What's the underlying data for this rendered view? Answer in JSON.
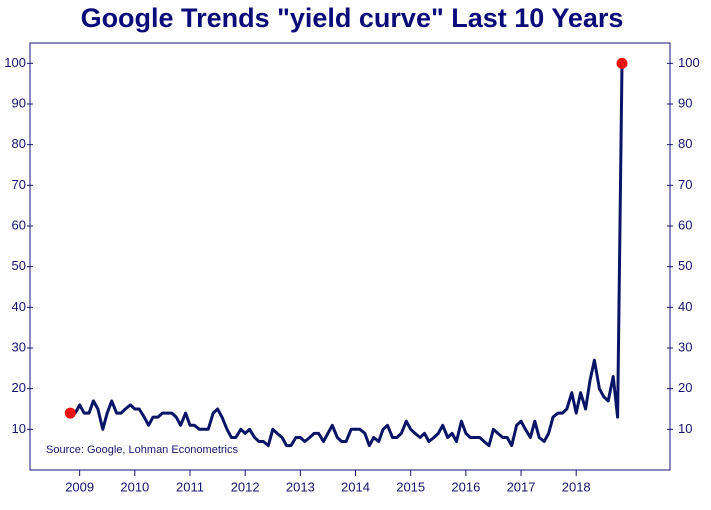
{
  "chart_data": {
    "type": "line",
    "title": "Google Trends \"yield curve\" Last 10 Years",
    "annotation": "Source: Google, Lohman Econometrics",
    "x": [
      2008.83,
      2008.92,
      2009.0,
      2009.08,
      2009.17,
      2009.25,
      2009.33,
      2009.42,
      2009.5,
      2009.58,
      2009.67,
      2009.75,
      2009.83,
      2009.92,
      2010.0,
      2010.08,
      2010.17,
      2010.25,
      2010.33,
      2010.42,
      2010.5,
      2010.58,
      2010.67,
      2010.75,
      2010.83,
      2010.92,
      2011.0,
      2011.08,
      2011.17,
      2011.25,
      2011.33,
      2011.42,
      2011.5,
      2011.58,
      2011.67,
      2011.75,
      2011.83,
      2011.92,
      2012.0,
      2012.08,
      2012.17,
      2012.25,
      2012.33,
      2012.42,
      2012.5,
      2012.58,
      2012.67,
      2012.75,
      2012.83,
      2012.92,
      2013.0,
      2013.08,
      2013.17,
      2013.25,
      2013.33,
      2013.42,
      2013.5,
      2013.58,
      2013.67,
      2013.75,
      2013.83,
      2013.92,
      2014.0,
      2014.08,
      2014.17,
      2014.25,
      2014.33,
      2014.42,
      2014.5,
      2014.58,
      2014.67,
      2014.75,
      2014.83,
      2014.92,
      2015.0,
      2015.08,
      2015.17,
      2015.25,
      2015.33,
      2015.42,
      2015.5,
      2015.58,
      2015.67,
      2015.75,
      2015.83,
      2015.92,
      2016.0,
      2016.08,
      2016.17,
      2016.25,
      2016.33,
      2016.42,
      2016.5,
      2016.58,
      2016.67,
      2016.75,
      2016.83,
      2016.92,
      2017.0,
      2017.08,
      2017.17,
      2017.25,
      2017.33,
      2017.42,
      2017.5,
      2017.58,
      2017.67,
      2017.75,
      2017.83,
      2017.92,
      2018.0,
      2018.08,
      2018.17,
      2018.25,
      2018.33,
      2018.42,
      2018.5,
      2018.58,
      2018.67,
      2018.75,
      2018.83
    ],
    "values": [
      14,
      14,
      16,
      14,
      14,
      17,
      15,
      10,
      14,
      17,
      14,
      14,
      15,
      16,
      15,
      15,
      13,
      11,
      13,
      13,
      14,
      14,
      14,
      13,
      11,
      14,
      11,
      11,
      10,
      10,
      10,
      14,
      15,
      13,
      10,
      8,
      8,
      10,
      9,
      10,
      8,
      7,
      7,
      6,
      10,
      9,
      8,
      6,
      6,
      8,
      8,
      7,
      8,
      9,
      9,
      7,
      9,
      11,
      8,
      7,
      7,
      10,
      10,
      10,
      9,
      6,
      8,
      7,
      10,
      11,
      8,
      8,
      9,
      12,
      10,
      9,
      8,
      9,
      7,
      8,
      9,
      11,
      8,
      9,
      7,
      12,
      9,
      8,
      8,
      8,
      7,
      6,
      10,
      9,
      8,
      8,
      6,
      11,
      12,
      10,
      8,
      12,
      8,
      7,
      9,
      13,
      14,
      14,
      15,
      19,
      14,
      19,
      15,
      22,
      27,
      20,
      18,
      17,
      23,
      13,
      100
    ],
    "color": "#0a1466",
    "highlight_color": "#ee1111",
    "xlim": [
      2008.1,
      2019.7
    ],
    "xticks": [
      2009,
      2010,
      2011,
      2012,
      2013,
      2014,
      2015,
      2016,
      2017,
      2018
    ],
    "ylim": [
      0,
      105
    ],
    "yticks": [
      10,
      20,
      30,
      40,
      50,
      60,
      70,
      80,
      90,
      100
    ]
  }
}
